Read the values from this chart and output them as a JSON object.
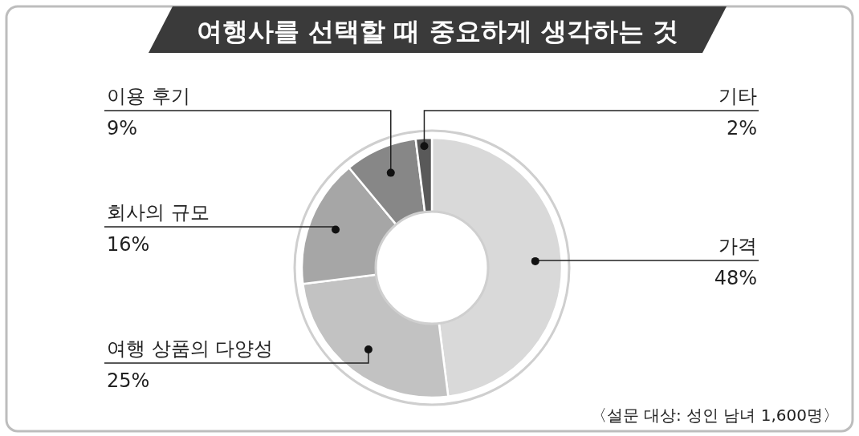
{
  "chart_data": {
    "type": "donut",
    "title": "여행사를 선택할 때 중요하게 생각하는 것",
    "categories": [
      "가격",
      "여행 상품의 다양성",
      "회사의 규모",
      "이용 후기",
      "기타"
    ],
    "values": [
      48,
      25,
      16,
      9,
      2
    ],
    "value_labels": [
      "48%",
      "25%",
      "16%",
      "9%",
      "2%"
    ],
    "colors": [
      "#d9d9d9",
      "#c2c2c2",
      "#a6a6a6",
      "#878787",
      "#595959"
    ],
    "annotations": [
      "〈설문 대상: 성인 남녀 1,600명〉"
    ]
  }
}
